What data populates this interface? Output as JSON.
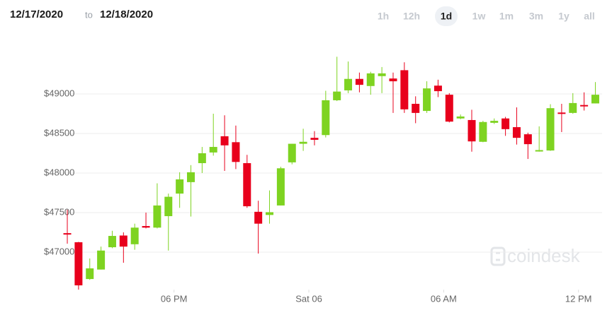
{
  "header": {
    "from": "12/17/2020",
    "separator": "to",
    "to": "12/18/2020",
    "ranges": [
      "1h",
      "12h",
      "1d",
      "1w",
      "1m",
      "3m",
      "1y",
      "all"
    ],
    "selected": "1d"
  },
  "chart_data": {
    "type": "candlestick",
    "watermark": "coindesk",
    "up_color": "#7ed321",
    "down_color": "#e8001c",
    "grid": true,
    "ylim": [
      46525,
      49650
    ],
    "yticks": [
      {
        "value": 47000,
        "label": "$47000"
      },
      {
        "value": 47500,
        "label": "$47500"
      },
      {
        "value": 48000,
        "label": "$48000"
      },
      {
        "value": 48500,
        "label": "$48500"
      },
      {
        "value": 49000,
        "label": "$49000"
      }
    ],
    "xlim": [
      -0.6,
      47.6
    ],
    "xticks": [
      {
        "value": 9.5,
        "label": "06 PM"
      },
      {
        "value": 21.5,
        "label": "Sat 06"
      },
      {
        "value": 33.5,
        "label": "06 AM"
      },
      {
        "value": 45.5,
        "label": "12 PM"
      }
    ],
    "open": [
      47240,
      47125,
      46660,
      46780,
      47062,
      47210,
      47100,
      47330,
      47310,
      47455,
      47740,
      47885,
      48125,
      48260,
      48465,
      48390,
      48125,
      47510,
      47470,
      47590,
      48135,
      48370,
      48445,
      48480,
      48920,
      49045,
      49190,
      49100,
      49225,
      49195,
      49300,
      48875,
      48785,
      49105,
      48990,
      48690,
      48670,
      48395,
      48635,
      48690,
      48580,
      48490,
      48280,
      48285,
      48765,
      48760,
      48860,
      48880
    ],
    "high": [
      47535,
      47130,
      46920,
      47070,
      47270,
      47250,
      47360,
      47500,
      47870,
      47740,
      48010,
      48100,
      48330,
      48750,
      48730,
      48600,
      48230,
      47650,
      47780,
      48080,
      48370,
      48560,
      48530,
      49040,
      49470,
      49410,
      49270,
      49280,
      49340,
      49270,
      49400,
      48970,
      49160,
      49180,
      49010,
      48740,
      48800,
      48660,
      48690,
      48710,
      48830,
      48510,
      48590,
      48870,
      48875,
      49010,
      49020,
      49150
    ],
    "low": [
      47107,
      46526,
      46650,
      46780,
      47050,
      46866,
      47030,
      47300,
      47300,
      47020,
      47560,
      47450,
      48000,
      48220,
      48027,
      48050,
      47560,
      46982,
      47360,
      47590,
      48110,
      48280,
      48350,
      48450,
      48910,
      49010,
      49020,
      48990,
      49010,
      48760,
      48760,
      48630,
      48760,
      48960,
      48640,
      48680,
      48270,
      48390,
      48620,
      48470,
      48360,
      48178,
      48270,
      48280,
      48518,
      48750,
      48790,
      48880
    ],
    "close": [
      47230,
      46580,
      46795,
      47020,
      47205,
      47070,
      47310,
      47310,
      47590,
      47700,
      47920,
      48010,
      48250,
      48330,
      48350,
      48140,
      47580,
      47360,
      47505,
      48060,
      48370,
      48395,
      48420,
      48920,
      49030,
      49190,
      49115,
      49260,
      49260,
      49160,
      48805,
      48760,
      49070,
      49035,
      48650,
      48715,
      48400,
      48645,
      48660,
      48555,
      48445,
      48365,
      48290,
      48820,
      48755,
      48885,
      48850,
      48990
    ]
  }
}
